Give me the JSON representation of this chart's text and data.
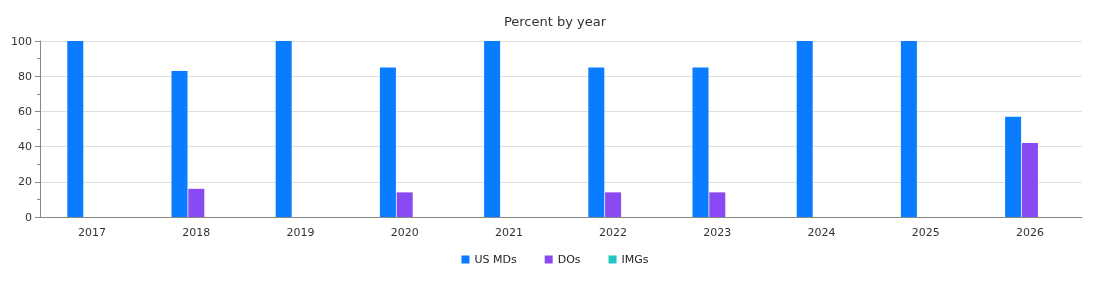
{
  "chart_data": {
    "type": "bar",
    "title": "Percent by year",
    "categories": [
      "2017",
      "2018",
      "2019",
      "2020",
      "2021",
      "2022",
      "2023",
      "2024",
      "2025",
      "2026"
    ],
    "series": [
      {
        "name": "US MDs",
        "color": "#0a7cff",
        "values": [
          100,
          83,
          100,
          85,
          100,
          85,
          85,
          100,
          100,
          57
        ]
      },
      {
        "name": "DOs",
        "color": "#8a4af3",
        "values": [
          0,
          16,
          0,
          14,
          0,
          14,
          14,
          0,
          0,
          42
        ]
      },
      {
        "name": "IMGs",
        "color": "#1fc7c0",
        "values": [
          0,
          0,
          0,
          0,
          0,
          0,
          0,
          0,
          0,
          0
        ]
      }
    ],
    "ylim": [
      0,
      100
    ],
    "yticks": [
      0,
      20,
      40,
      60,
      80,
      100
    ],
    "grid": "y",
    "legend": "bottom"
  }
}
